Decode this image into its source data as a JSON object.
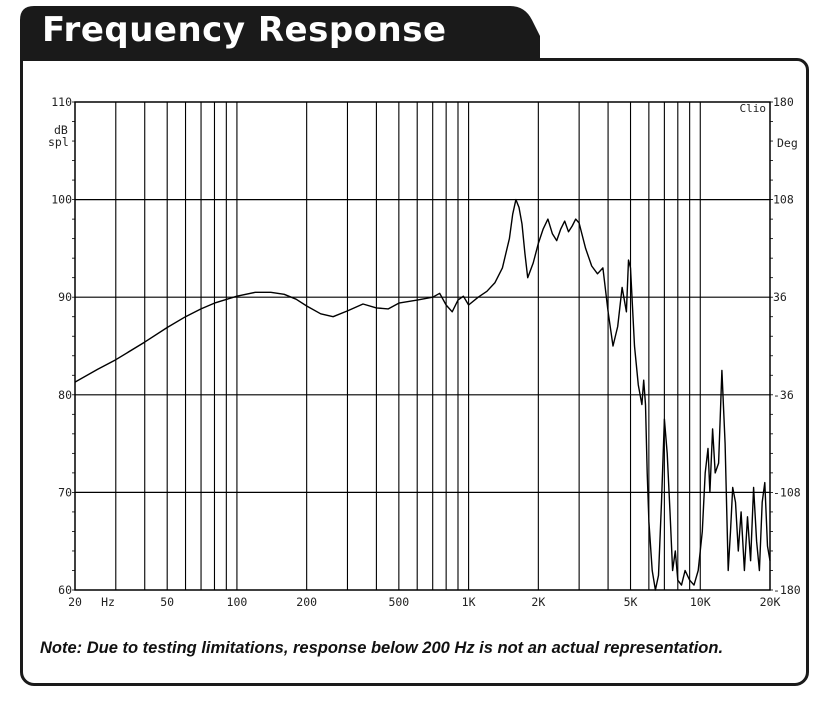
{
  "header": {
    "title": "Frequency Response"
  },
  "note": "Note:  Due to testing limitations, response below 200 Hz is not an actual representation.",
  "colors": {
    "frame": "#1a1a1a",
    "title_bg": "#1a1a1a",
    "title_text": "#ffffff",
    "curve": "#000000",
    "grid": "#000000"
  },
  "chart_data": {
    "type": "line",
    "title": "",
    "brand": "Clio",
    "x_unit_label": "Hz",
    "y_unit_label": [
      "dB",
      "spl"
    ],
    "y2_unit_label": "Deg",
    "x_scale": "log",
    "xlim": [
      20,
      20000
    ],
    "ylim": [
      60,
      110
    ],
    "y2lim": [
      -180,
      180
    ],
    "grid": true,
    "x_ticks": [
      {
        "value": 20,
        "label": "20"
      },
      {
        "value": 50,
        "label": "50"
      },
      {
        "value": 100,
        "label": "100"
      },
      {
        "value": 200,
        "label": "200"
      },
      {
        "value": 500,
        "label": "500"
      },
      {
        "value": 1000,
        "label": "1K"
      },
      {
        "value": 2000,
        "label": "2K"
      },
      {
        "value": 5000,
        "label": "5K"
      },
      {
        "value": 10000,
        "label": "10K"
      },
      {
        "value": 20000,
        "label": "20K"
      }
    ],
    "y_ticks": [
      {
        "value": 110,
        "label": "110"
      },
      {
        "value": 100,
        "label": "100"
      },
      {
        "value": 90,
        "label": "90"
      },
      {
        "value": 80,
        "label": "80"
      },
      {
        "value": 70,
        "label": "70"
      },
      {
        "value": 60,
        "label": "60"
      }
    ],
    "y2_ticks": [
      {
        "value": 180,
        "label": "180"
      },
      {
        "value": 108,
        "label": "108"
      },
      {
        "value": 36,
        "label": "36"
      },
      {
        "value": -36,
        "label": "-36"
      },
      {
        "value": -108,
        "label": "-108"
      },
      {
        "value": -180,
        "label": "-180"
      }
    ],
    "series": [
      {
        "x": [
          20,
          25,
          30,
          40,
          50,
          60,
          70,
          80,
          100,
          120,
          140,
          160,
          180,
          200,
          230,
          260,
          300,
          350,
          400,
          450,
          500,
          600,
          700,
          750,
          800,
          850,
          900,
          950,
          1000,
          1100,
          1200,
          1300,
          1400,
          1500,
          1550,
          1600,
          1650,
          1700,
          1750,
          1800,
          1900,
          2000,
          2100,
          2200,
          2300,
          2400,
          2500,
          2600,
          2700,
          2800,
          2900,
          3000,
          3200,
          3400,
          3600,
          3800,
          4000,
          4200,
          4400,
          4600,
          4800,
          4900,
          5000,
          5200,
          5400,
          5600,
          5700,
          5800,
          5900,
          6000,
          6200,
          6400,
          6600,
          6800,
          7000,
          7200,
          7400,
          7600,
          7800,
          8000,
          8300,
          8600,
          9000,
          9400,
          9800,
          10200,
          10500,
          10800,
          11000,
          11300,
          11600,
          12000,
          12400,
          12800,
          13200,
          13500,
          13800,
          14200,
          14600,
          15000,
          15500,
          16000,
          16500,
          17000,
          17500,
          18000,
          18500,
          19000,
          19500,
          20000
        ],
        "y": [
          81.3,
          82.6,
          83.6,
          85.4,
          86.9,
          88.0,
          88.8,
          89.4,
          90.1,
          90.5,
          90.5,
          90.3,
          89.8,
          89.1,
          88.3,
          88.0,
          88.6,
          89.3,
          88.9,
          88.8,
          89.4,
          89.7,
          90.0,
          90.4,
          89.2,
          88.5,
          89.7,
          90.1,
          89.2,
          90.0,
          90.6,
          91.5,
          93.0,
          96.0,
          98.5,
          100.0,
          99.2,
          97.5,
          94.5,
          92.0,
          93.5,
          95.5,
          97.0,
          98.0,
          96.5,
          95.8,
          97.0,
          97.8,
          96.7,
          97.3,
          98.0,
          97.6,
          95.0,
          93.2,
          92.4,
          93.0,
          88.5,
          85.0,
          87.0,
          91.0,
          88.5,
          93.8,
          93.0,
          85.0,
          81.0,
          79.0,
          81.5,
          79.0,
          72.0,
          67.0,
          62.0,
          60.0,
          61.5,
          69.0,
          77.5,
          74.0,
          68.0,
          62.0,
          64.0,
          61.0,
          60.5,
          62.0,
          61.0,
          60.5,
          62.0,
          66.0,
          72.0,
          74.5,
          70.0,
          76.5,
          72.0,
          73.0,
          82.5,
          75.0,
          62.0,
          66.0,
          70.5,
          69.0,
          64.0,
          68.0,
          62.0,
          67.5,
          63.0,
          70.5,
          65.0,
          62.0,
          69.0,
          71.0,
          64.5,
          63.0
        ]
      }
    ]
  }
}
